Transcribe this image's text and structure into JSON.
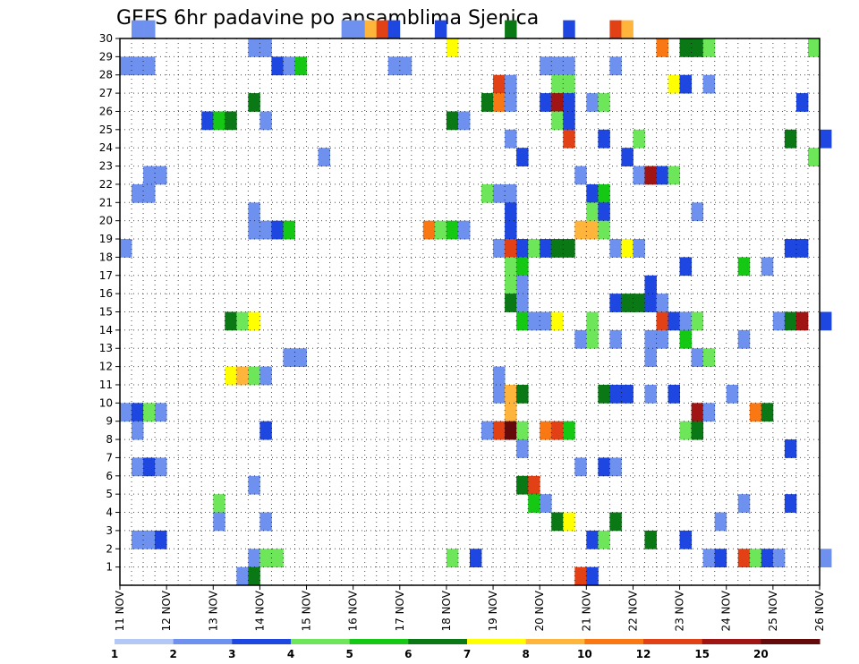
{
  "chart_data": {
    "type": "heatmap",
    "title": "GEFS 6hr padavine po ansamblima Sjenica",
    "x_categories": [
      "11 NOV",
      "12 NOV",
      "13 NOV",
      "14 NOV",
      "15 NOV",
      "16 NOV",
      "17 NOV",
      "18 NOV",
      "19 NOV",
      "20 NOV",
      "21 NOV",
      "22 NOV",
      "23 NOV",
      "24 NOV",
      "25 NOV",
      "26 NOV"
    ],
    "x_range": [
      0,
      60
    ],
    "x_unit": "6-hour steps from 11 NOV",
    "y_categories": [
      1,
      2,
      3,
      4,
      5,
      6,
      7,
      8,
      9,
      10,
      11,
      12,
      13,
      14,
      15,
      16,
      17,
      18,
      19,
      20,
      21,
      22,
      23,
      24,
      25,
      26,
      27,
      28,
      29,
      30
    ],
    "y_range": [
      0,
      30
    ],
    "grid": true,
    "colorbar": {
      "position": "bottom",
      "labels": [
        "1",
        "2",
        "3",
        "4",
        "5",
        "6",
        "7",
        "8",
        "10",
        "12",
        "15",
        "20"
      ],
      "colors": [
        "#b4c8f5",
        "#6e91f0",
        "#1e46e1",
        "#6ee65a",
        "#14c814",
        "#0a7814",
        "#ffff00",
        "#ffb43c",
        "#fa7814",
        "#e14114",
        "#a01414",
        "#640a0a"
      ]
    },
    "cells": [
      [
        1,
        30,
        1
      ],
      [
        2,
        30,
        1
      ],
      [
        19,
        30,
        1
      ],
      [
        20,
        30,
        1
      ],
      [
        21,
        30,
        7
      ],
      [
        22,
        30,
        9
      ],
      [
        23,
        30,
        2
      ],
      [
        27,
        30,
        2
      ],
      [
        33,
        30,
        5
      ],
      [
        38,
        30,
        2
      ],
      [
        42,
        30,
        9
      ],
      [
        43,
        30,
        7
      ],
      [
        11,
        29,
        1
      ],
      [
        12,
        29,
        1
      ],
      [
        28,
        29,
        6
      ],
      [
        46,
        29,
        8
      ],
      [
        48,
        29,
        5
      ],
      [
        49,
        29,
        5
      ],
      [
        50,
        29,
        3
      ],
      [
        59,
        29,
        3
      ],
      [
        0,
        28,
        1
      ],
      [
        1,
        28,
        1
      ],
      [
        2,
        28,
        1
      ],
      [
        13,
        28,
        2
      ],
      [
        14,
        28,
        1
      ],
      [
        15,
        28,
        4
      ],
      [
        23,
        28,
        1
      ],
      [
        24,
        28,
        1
      ],
      [
        36,
        28,
        1
      ],
      [
        37,
        28,
        1
      ],
      [
        38,
        28,
        1
      ],
      [
        42,
        28,
        1
      ],
      [
        32,
        27,
        9
      ],
      [
        33,
        27,
        1
      ],
      [
        37,
        27,
        3
      ],
      [
        38,
        27,
        3
      ],
      [
        47,
        27,
        6
      ],
      [
        48,
        27,
        2
      ],
      [
        50,
        27,
        1
      ],
      [
        31,
        26,
        5
      ],
      [
        32,
        26,
        8
      ],
      [
        33,
        26,
        1
      ],
      [
        36,
        26,
        2
      ],
      [
        37,
        26,
        10
      ],
      [
        38,
        26,
        2
      ],
      [
        40,
        26,
        1
      ],
      [
        41,
        26,
        3
      ],
      [
        11,
        26,
        5
      ],
      [
        58,
        26,
        2
      ],
      [
        7,
        25,
        2
      ],
      [
        8,
        25,
        4
      ],
      [
        9,
        25,
        5
      ],
      [
        12,
        25,
        1
      ],
      [
        28,
        25,
        5
      ],
      [
        29,
        25,
        1
      ],
      [
        37,
        25,
        3
      ],
      [
        38,
        25,
        2
      ],
      [
        33,
        24,
        1
      ],
      [
        38,
        24,
        9
      ],
      [
        41,
        24,
        2
      ],
      [
        44,
        24,
        3
      ],
      [
        57,
        24,
        5
      ],
      [
        60,
        24,
        2
      ],
      [
        17,
        23,
        1
      ],
      [
        34,
        23,
        2
      ],
      [
        43,
        23,
        2
      ],
      [
        59,
        23,
        3
      ],
      [
        2,
        22,
        1
      ],
      [
        3,
        22,
        1
      ],
      [
        39,
        22,
        1
      ],
      [
        44,
        22,
        1
      ],
      [
        45,
        22,
        10
      ],
      [
        46,
        22,
        2
      ],
      [
        47,
        22,
        3
      ],
      [
        1,
        21,
        1
      ],
      [
        2,
        21,
        1
      ],
      [
        31,
        21,
        3
      ],
      [
        32,
        21,
        1
      ],
      [
        33,
        21,
        1
      ],
      [
        40,
        21,
        2
      ],
      [
        41,
        21,
        4
      ],
      [
        11,
        20,
        1
      ],
      [
        33,
        20,
        2
      ],
      [
        40,
        20,
        3
      ],
      [
        41,
        20,
        2
      ],
      [
        49,
        20,
        1
      ],
      [
        11,
        19,
        1
      ],
      [
        12,
        19,
        1
      ],
      [
        13,
        19,
        2
      ],
      [
        14,
        19,
        4
      ],
      [
        26,
        19,
        8
      ],
      [
        27,
        19,
        3
      ],
      [
        28,
        19,
        4
      ],
      [
        29,
        19,
        1
      ],
      [
        33,
        19,
        2
      ],
      [
        39,
        19,
        7
      ],
      [
        40,
        19,
        7
      ],
      [
        41,
        19,
        3
      ],
      [
        0,
        18,
        1
      ],
      [
        32,
        18,
        1
      ],
      [
        33,
        18,
        9
      ],
      [
        34,
        18,
        2
      ],
      [
        35,
        18,
        3
      ],
      [
        36,
        18,
        2
      ],
      [
        37,
        18,
        5
      ],
      [
        38,
        18,
        5
      ],
      [
        42,
        18,
        1
      ],
      [
        43,
        18,
        6
      ],
      [
        44,
        18,
        1
      ],
      [
        57,
        18,
        2
      ],
      [
        58,
        18,
        2
      ],
      [
        33,
        17,
        3
      ],
      [
        34,
        17,
        4
      ],
      [
        48,
        17,
        2
      ],
      [
        53,
        17,
        4
      ],
      [
        55,
        17,
        1
      ],
      [
        33,
        16,
        3
      ],
      [
        34,
        16,
        1
      ],
      [
        45,
        16,
        2
      ],
      [
        33,
        15,
        5
      ],
      [
        34,
        15,
        1
      ],
      [
        42,
        15,
        2
      ],
      [
        43,
        15,
        5
      ],
      [
        44,
        15,
        5
      ],
      [
        45,
        15,
        2
      ],
      [
        46,
        15,
        1
      ],
      [
        9,
        14,
        5
      ],
      [
        10,
        14,
        3
      ],
      [
        11,
        14,
        6
      ],
      [
        34,
        14,
        4
      ],
      [
        35,
        14,
        1
      ],
      [
        36,
        14,
        1
      ],
      [
        37,
        14,
        6
      ],
      [
        40,
        14,
        3
      ],
      [
        46,
        14,
        9
      ],
      [
        47,
        14,
        2
      ],
      [
        48,
        14,
        1
      ],
      [
        49,
        14,
        3
      ],
      [
        56,
        14,
        1
      ],
      [
        57,
        14,
        5
      ],
      [
        58,
        14,
        10
      ],
      [
        60,
        14,
        2
      ],
      [
        39,
        13,
        1
      ],
      [
        40,
        13,
        3
      ],
      [
        42,
        13,
        1
      ],
      [
        45,
        13,
        1
      ],
      [
        46,
        13,
        1
      ],
      [
        48,
        13,
        4
      ],
      [
        53,
        13,
        1
      ],
      [
        14,
        12,
        1
      ],
      [
        15,
        12,
        1
      ],
      [
        45,
        12,
        1
      ],
      [
        49,
        12,
        1
      ],
      [
        50,
        12,
        3
      ],
      [
        9,
        11,
        6
      ],
      [
        10,
        11,
        7
      ],
      [
        11,
        11,
        3
      ],
      [
        12,
        11,
        1
      ],
      [
        32,
        11,
        1
      ],
      [
        32,
        10,
        1
      ],
      [
        33,
        10,
        7
      ],
      [
        34,
        10,
        5
      ],
      [
        41,
        10,
        5
      ],
      [
        42,
        10,
        2
      ],
      [
        43,
        10,
        2
      ],
      [
        45,
        10,
        1
      ],
      [
        47,
        10,
        2
      ],
      [
        52,
        10,
        1
      ],
      [
        0,
        9,
        1
      ],
      [
        1,
        9,
        2
      ],
      [
        2,
        9,
        3
      ],
      [
        3,
        9,
        1
      ],
      [
        33,
        9,
        7
      ],
      [
        49,
        9,
        10
      ],
      [
        50,
        9,
        1
      ],
      [
        54,
        9,
        8
      ],
      [
        55,
        9,
        5
      ],
      [
        1,
        8,
        1
      ],
      [
        12,
        8,
        2
      ],
      [
        31,
        8,
        1
      ],
      [
        32,
        8,
        9
      ],
      [
        33,
        8,
        11
      ],
      [
        34,
        8,
        3
      ],
      [
        36,
        8,
        8
      ],
      [
        37,
        8,
        9
      ],
      [
        38,
        8,
        4
      ],
      [
        48,
        8,
        3
      ],
      [
        49,
        8,
        5
      ],
      [
        34,
        7,
        1
      ],
      [
        57,
        7,
        2
      ],
      [
        1,
        6,
        1
      ],
      [
        2,
        6,
        2
      ],
      [
        3,
        6,
        1
      ],
      [
        39,
        6,
        1
      ],
      [
        41,
        6,
        2
      ],
      [
        42,
        6,
        1
      ],
      [
        11,
        5,
        1
      ],
      [
        34,
        5,
        5
      ],
      [
        35,
        5,
        9
      ],
      [
        8,
        4,
        3
      ],
      [
        35,
        4,
        4
      ],
      [
        36,
        4,
        1
      ],
      [
        53,
        4,
        1
      ],
      [
        57,
        4,
        2
      ],
      [
        8,
        3,
        1
      ],
      [
        12,
        3,
        1
      ],
      [
        37,
        3,
        5
      ],
      [
        38,
        3,
        6
      ],
      [
        42,
        3,
        5
      ],
      [
        51,
        3,
        1
      ],
      [
        1,
        2,
        1
      ],
      [
        2,
        2,
        1
      ],
      [
        3,
        2,
        2
      ],
      [
        40,
        2,
        2
      ],
      [
        41,
        2,
        3
      ],
      [
        45,
        2,
        5
      ],
      [
        48,
        2,
        2
      ],
      [
        11,
        1,
        1
      ],
      [
        12,
        1,
        3
      ],
      [
        13,
        1,
        3
      ],
      [
        28,
        1,
        3
      ],
      [
        30,
        1,
        2
      ],
      [
        50,
        1,
        1
      ],
      [
        51,
        1,
        2
      ],
      [
        53,
        1,
        9
      ],
      [
        54,
        1,
        3
      ],
      [
        55,
        1,
        2
      ],
      [
        56,
        1,
        1
      ],
      [
        60,
        1,
        1
      ],
      [
        10,
        0,
        1
      ],
      [
        11,
        0,
        5
      ],
      [
        39,
        0,
        9
      ],
      [
        40,
        0,
        2
      ]
    ]
  }
}
